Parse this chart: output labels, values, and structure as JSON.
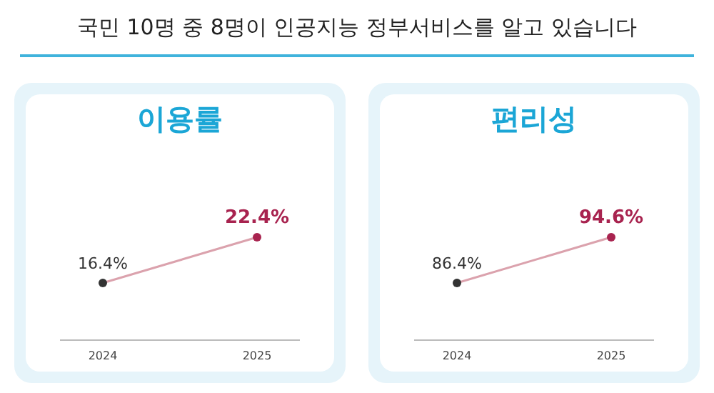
{
  "chart_data": [
    {
      "type": "other",
      "title": "국민 10명 중 8명이 인공지능 정부서비스를 알고 있습니다"
    },
    {
      "type": "line",
      "title": "이용률",
      "categories": [
        "2024",
        "2025"
      ],
      "marker": "circle",
      "series": [
        {
          "color": "#dba2ad",
          "colors": [
            "#333333",
            "#a8234f"
          ],
          "values": [
            16.4,
            22.4
          ],
          "value_labels": [
            "16.4%",
            "22.4%"
          ]
        }
      ]
    },
    {
      "type": "line",
      "title": "편리성",
      "categories": [
        "2024",
        "2025"
      ],
      "marker": "circle",
      "series": [
        {
          "color": "#dba2ad",
          "colors": [
            "#333333",
            "#a8234f"
          ],
          "values": [
            86.4,
            94.6
          ],
          "value_labels": [
            "86.4%",
            "94.6%"
          ]
        }
      ]
    }
  ]
}
